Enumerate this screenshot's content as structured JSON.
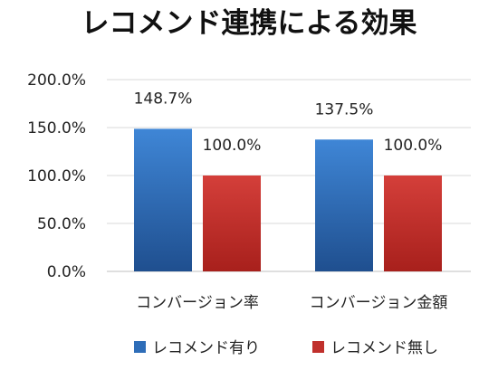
{
  "chart_data": {
    "type": "bar",
    "title": "レコメンド連携による効果",
    "categories": [
      "コンバージョン率",
      "コンバージョン金額"
    ],
    "series": [
      {
        "name": "レコメンド有り",
        "values": [
          148.7,
          137.5
        ],
        "labels": [
          "148.7%",
          "137.5%"
        ],
        "color": "#2e6db8"
      },
      {
        "name": "レコメンド無し",
        "values": [
          100.0,
          100.0
        ],
        "labels": [
          "100.0%",
          "100.0%"
        ],
        "color": "#c0302c"
      }
    ],
    "yticks": [
      "0.0%",
      "50.0%",
      "100.0%",
      "150.0%",
      "200.0%"
    ],
    "ylim": [
      0,
      200
    ],
    "grid": true,
    "legend": "bottom"
  }
}
